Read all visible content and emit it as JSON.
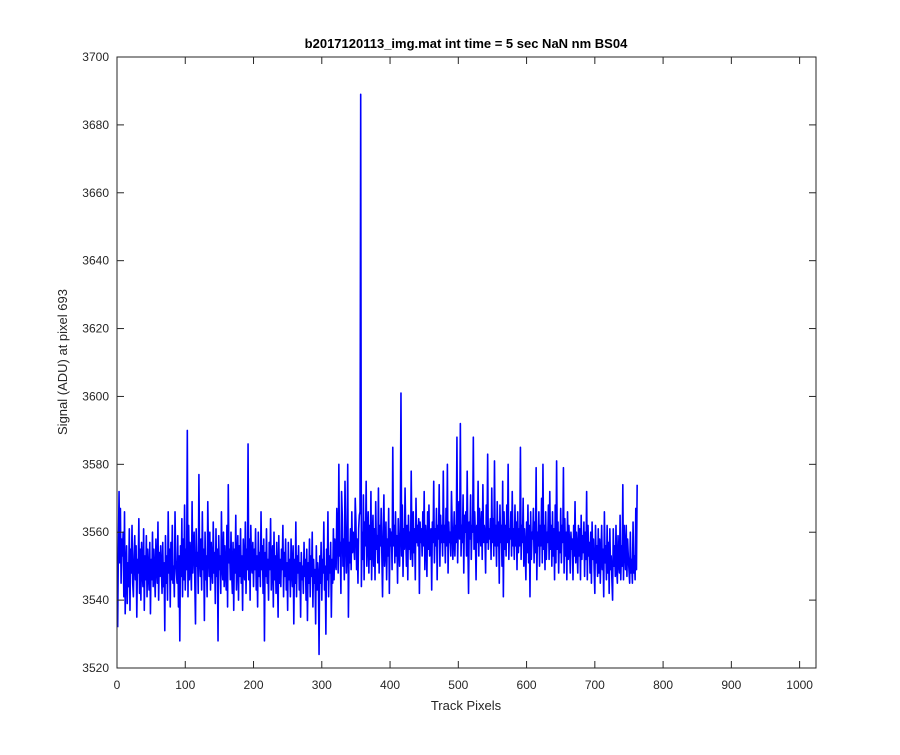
{
  "chart_data": {
    "type": "line",
    "title": "b2017120113_img.mat int time = 5 sec  NaN nm BS04",
    "xlabel": "Track Pixels",
    "ylabel": "Signal (ADU) at pixel 693",
    "xlim": [
      0,
      1024
    ],
    "ylim": [
      3520,
      3700
    ],
    "xticks": [
      0,
      100,
      200,
      300,
      400,
      500,
      600,
      700,
      800,
      900,
      1000
    ],
    "yticks": [
      3520,
      3540,
      3560,
      3580,
      3600,
      3620,
      3640,
      3660,
      3680,
      3700
    ],
    "grid": false,
    "legend": "none",
    "series": [
      {
        "color": "#0000ff",
        "x_start": 1,
        "x_step": 1,
        "values": [
          3532,
          3555,
          3572,
          3551,
          3567,
          3545,
          3558,
          3553,
          3560,
          3541,
          3566,
          3536,
          3548,
          3556,
          3539,
          3551,
          3544,
          3561,
          3537,
          3555,
          3548,
          3562,
          3545,
          3541,
          3553,
          3559,
          3546,
          3556,
          3535,
          3552,
          3548,
          3564,
          3542,
          3555,
          3540,
          3557,
          3549,
          3544,
          3561,
          3537,
          3553,
          3546,
          3559,
          3541,
          3555,
          3548,
          3543,
          3557,
          3536,
          3552,
          3546,
          3560,
          3544,
          3555,
          3548,
          3541,
          3558,
          3550,
          3545,
          3563,
          3540,
          3554,
          3547,
          3556,
          3549,
          3542,
          3557,
          3544,
          3551,
          3531,
          3559,
          3545,
          3553,
          3540,
          3566,
          3548,
          3555,
          3538,
          3557,
          3546,
          3562,
          3545,
          3550,
          3541,
          3566,
          3552,
          3548,
          3545,
          3559,
          3538,
          3553,
          3528,
          3556,
          3547,
          3564,
          3541,
          3558,
          3546,
          3568,
          3543,
          3555,
          3549,
          3590,
          3541,
          3562,
          3546,
          3557,
          3551,
          3543,
          3569,
          3548,
          3555,
          3560,
          3545,
          3533,
          3561,
          3550,
          3554,
          3542,
          3577,
          3552,
          3547,
          3558,
          3543,
          3566,
          3549,
          3555,
          3534,
          3560,
          3546,
          3553,
          3541,
          3569,
          3554,
          3547,
          3560,
          3543,
          3557,
          3550,
          3545,
          3563,
          3548,
          3554,
          3539,
          3561,
          3547,
          3555,
          3528,
          3559,
          3549,
          3553,
          3542,
          3566,
          3550,
          3546,
          3560,
          3544,
          3556,
          3549,
          3543,
          3562,
          3538,
          3574,
          3551,
          3555,
          3546,
          3560,
          3548,
          3542,
          3557,
          3537,
          3555,
          3548,
          3565,
          3543,
          3551,
          3559,
          3540,
          3556,
          3547,
          3561,
          3545,
          3553,
          3537,
          3558,
          3550,
          3546,
          3563,
          3542,
          3555,
          3549,
          3586,
          3546,
          3558,
          3540,
          3562,
          3551,
          3548,
          3557,
          3544,
          3555,
          3549,
          3561,
          3543,
          3553,
          3538,
          3560,
          3547,
          3554,
          3544,
          3566,
          3549,
          3556,
          3542,
          3558,
          3528,
          3554,
          3547,
          3561,
          3545,
          3552,
          3540,
          3557,
          3549,
          3564,
          3543,
          3551,
          3556,
          3538,
          3560,
          3546,
          3553,
          3542,
          3557,
          3548,
          3535,
          3559,
          3545,
          3552,
          3544,
          3555,
          3549,
          3562,
          3541,
          3554,
          3547,
          3558,
          3543,
          3551,
          3537,
          3557,
          3546,
          3552,
          3541,
          3558,
          3549,
          3544,
          3556,
          3533,
          3552,
          3545,
          3563,
          3541,
          3553,
          3548,
          3556,
          3543,
          3551,
          3535,
          3554,
          3546,
          3550,
          3542,
          3557,
          3547,
          3552,
          3540,
          3555,
          3534,
          3551,
          3545,
          3558,
          3541,
          3553,
          3547,
          3560,
          3538,
          3552,
          3545,
          3549,
          3533,
          3556,
          3543,
          3551,
          3547,
          3524,
          3553,
          3545,
          3557,
          3540,
          3552,
          3548,
          3563,
          3543,
          3550,
          3530,
          3555,
          3546,
          3566,
          3541,
          3553,
          3548,
          3557,
          3535,
          3552,
          3545,
          3561,
          3546,
          3558,
          3551,
          3549,
          3567,
          3560,
          3548,
          3580,
          3553,
          3557,
          3542,
          3572,
          3565,
          3550,
          3558,
          3546,
          3575,
          3560,
          3548,
          3555,
          3580,
          3535,
          3557,
          3551,
          3561,
          3549,
          3566,
          3554,
          3560,
          3556,
          3552,
          3570,
          3563,
          3549,
          3558,
          3545,
          3561,
          3565,
          3566,
          3689,
          3544,
          3560,
          3552,
          3571,
          3546,
          3563,
          3556,
          3575,
          3550,
          3558,
          3566,
          3548,
          3562,
          3552,
          3572,
          3546,
          3558,
          3565,
          3550,
          3561,
          3546,
          3569,
          3555,
          3559,
          3551,
          3573,
          3548,
          3562,
          3556,
          3567,
          3553,
          3541,
          3560,
          3571,
          3550,
          3555,
          3563,
          3546,
          3558,
          3553,
          3567,
          3542,
          3561,
          3556,
          3560,
          3549,
          3585,
          3556,
          3562,
          3551,
          3566,
          3553,
          3559,
          3545,
          3564,
          3557,
          3550,
          3560,
          3601,
          3553,
          3568,
          3547,
          3561,
          3555,
          3573,
          3559,
          3550,
          3562,
          3546,
          3565,
          3555,
          3560,
          3552,
          3578,
          3557,
          3550,
          3566,
          3554,
          3561,
          3546,
          3570,
          3557,
          3562,
          3556,
          3564,
          3542,
          3563,
          3557,
          3561,
          3553,
          3566,
          3556,
          3572,
          3549,
          3562,
          3558,
          3547,
          3566,
          3555,
          3568,
          3553,
          3559,
          3561,
          3543,
          3563,
          3557,
          3575,
          3551,
          3561,
          3556,
          3567,
          3546,
          3562,
          3558,
          3574,
          3550,
          3565,
          3557,
          3562,
          3553,
          3578,
          3557,
          3562,
          3551,
          3567,
          3556,
          3580,
          3548,
          3563,
          3557,
          3560,
          3553,
          3572,
          3562,
          3552,
          3558,
          3566,
          3553,
          3562,
          3557,
          3588,
          3551,
          3563,
          3569,
          3558,
          3592,
          3553,
          3562,
          3557,
          3571,
          3548,
          3565,
          3560,
          3566,
          3553,
          3578,
          3557,
          3542,
          3563,
          3558,
          3571,
          3552,
          3562,
          3560,
          3588,
          3555,
          3566,
          3559,
          3546,
          3562,
          3557,
          3575,
          3553,
          3567,
          3560,
          3556,
          3566,
          3552,
          3574,
          3557,
          3562,
          3559,
          3548,
          3568,
          3557,
          3583,
          3555,
          3561,
          3558,
          3564,
          3552,
          3573,
          3557,
          3564,
          3553,
          3581,
          3556,
          3562,
          3550,
          3569,
          3556,
          3563,
          3545,
          3568,
          3557,
          3562,
          3550,
          3575,
          3541,
          3566,
          3555,
          3562,
          3553,
          3568,
          3557,
          3580,
          3552,
          3561,
          3558,
          3566,
          3553,
          3572,
          3556,
          3561,
          3552,
          3568,
          3556,
          3563,
          3549,
          3566,
          3554,
          3561,
          3556,
          3585,
          3552,
          3562,
          3557,
          3570,
          3550,
          3561,
          3555,
          3546,
          3563,
          3554,
          3568,
          3551,
          3562,
          3541,
          3566,
          3552,
          3560,
          3558,
          3567,
          3551,
          3563,
          3554,
          3579,
          3546,
          3560,
          3556,
          3566,
          3550,
          3562,
          3556,
          3570,
          3551,
          3580,
          3555,
          3562,
          3549,
          3566,
          3552,
          3560,
          3557,
          3568,
          3552,
          3572,
          3555,
          3562,
          3550,
          3566,
          3553,
          3561,
          3546,
          3568,
          3551,
          3581,
          3555,
          3563,
          3548,
          3560,
          3554,
          3567,
          3551,
          3562,
          3557,
          3579,
          3548,
          3564,
          3553,
          3560,
          3546,
          3566,
          3552,
          3562,
          3556,
          3548,
          3560,
          3555,
          3558,
          3546,
          3562,
          3553,
          3569,
          3551,
          3560,
          3555,
          3548,
          3562,
          3553,
          3561,
          3546,
          3565,
          3552,
          3559,
          3554,
          3563,
          3547,
          3560,
          3552,
          3572,
          3546,
          3562,
          3553,
          3557,
          3548,
          3560,
          3545,
          3563,
          3552,
          3558,
          3549,
          3542,
          3562,
          3551,
          3556,
          3547,
          3561,
          3548,
          3558,
          3545,
          3553,
          3562,
          3549,
          3555,
          3541,
          3566,
          3551,
          3556,
          3546,
          3562,
          3548,
          3557,
          3542,
          3561,
          3549,
          3553,
          3546,
          3540,
          3561,
          3550,
          3556,
          3547,
          3562,
          3549,
          3545,
          3559,
          3551,
          3548,
          3565,
          3546,
          3556,
          3550,
          3574,
          3546,
          3562,
          3555,
          3549,
          3562,
          3547,
          3558,
          3553,
          3549,
          3545,
          3560,
          3548,
          3552,
          3545,
          3563,
          3548,
          3553,
          3546,
          3567,
          3549,
          3574
        ]
      }
    ]
  }
}
